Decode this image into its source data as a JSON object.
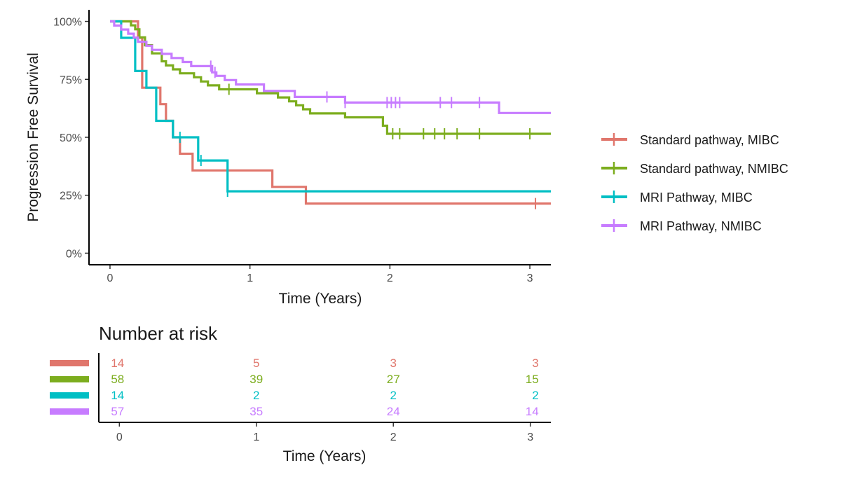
{
  "chart_data": [
    {
      "type": "line",
      "subtype": "kaplan-meier",
      "xlabel": "Time (Years)",
      "ylabel": "Progression Free Survival",
      "xlim": [
        -0.15,
        3.15
      ],
      "ylim": [
        -0.05,
        1.05
      ],
      "x_ticks": [
        0,
        1,
        2,
        3
      ],
      "x_tick_labels": [
        "0",
        "1",
        "2",
        "3"
      ],
      "y_ticks": [
        0,
        0.25,
        0.5,
        0.75,
        1
      ],
      "y_tick_labels": [
        "0%",
        "25%",
        "50%",
        "75%",
        "100%"
      ],
      "grid": false,
      "legend_position": "right",
      "series": [
        {
          "name": "Standard pathway, MIBC",
          "color": "#e0766c",
          "steps": [
            [
              0,
              1.0
            ],
            [
              0.2,
              0.929
            ],
            [
              0.23,
              0.714
            ],
            [
              0.36,
              0.643
            ],
            [
              0.4,
              0.571
            ],
            [
              0.45,
              0.5
            ],
            [
              0.5,
              0.429
            ],
            [
              0.59,
              0.357
            ],
            [
              1.16,
              0.286
            ],
            [
              1.4,
              0.214
            ],
            [
              3.15,
              0.214
            ]
          ],
          "censor_x": [
            3.04
          ]
        },
        {
          "name": "Standard pathway, NMIBC",
          "color": "#7cad1e",
          "steps": [
            [
              0,
              1.0
            ],
            [
              0.15,
              0.983
            ],
            [
              0.18,
              0.966
            ],
            [
              0.21,
              0.931
            ],
            [
              0.25,
              0.897
            ],
            [
              0.3,
              0.862
            ],
            [
              0.37,
              0.828
            ],
            [
              0.4,
              0.81
            ],
            [
              0.45,
              0.793
            ],
            [
              0.5,
              0.776
            ],
            [
              0.6,
              0.759
            ],
            [
              0.65,
              0.741
            ],
            [
              0.7,
              0.724
            ],
            [
              0.78,
              0.707
            ],
            [
              1.05,
              0.69
            ],
            [
              1.2,
              0.672
            ],
            [
              1.28,
              0.655
            ],
            [
              1.33,
              0.638
            ],
            [
              1.38,
              0.621
            ],
            [
              1.43,
              0.603
            ],
            [
              1.68,
              0.586
            ],
            [
              1.95,
              0.55
            ],
            [
              1.98,
              0.515
            ],
            [
              3.15,
              0.515
            ]
          ],
          "censor_x": [
            0.85,
            2.02,
            2.07,
            2.24,
            2.32,
            2.39,
            2.48,
            2.64,
            3.0
          ]
        },
        {
          "name": "MRI Pathway, MIBC",
          "color": "#00bfc4",
          "steps": [
            [
              0,
              1.0
            ],
            [
              0.08,
              0.929
            ],
            [
              0.18,
              0.786
            ],
            [
              0.26,
              0.714
            ],
            [
              0.33,
              0.571
            ],
            [
              0.45,
              0.5
            ],
            [
              0.63,
              0.4
            ],
            [
              0.84,
              0.267
            ],
            [
              3.15,
              0.267
            ]
          ],
          "censor_x": [
            0.5,
            0.65,
            0.84
          ]
        },
        {
          "name": "MRI Pathway, NMIBC",
          "color": "#c77cff",
          "steps": [
            [
              0,
              1.0
            ],
            [
              0.03,
              0.982
            ],
            [
              0.08,
              0.965
            ],
            [
              0.13,
              0.947
            ],
            [
              0.17,
              0.93
            ],
            [
              0.2,
              0.912
            ],
            [
              0.26,
              0.895
            ],
            [
              0.3,
              0.877
            ],
            [
              0.37,
              0.86
            ],
            [
              0.44,
              0.842
            ],
            [
              0.52,
              0.825
            ],
            [
              0.58,
              0.807
            ],
            [
              0.73,
              0.78
            ],
            [
              0.76,
              0.765
            ],
            [
              0.82,
              0.747
            ],
            [
              0.9,
              0.728
            ],
            [
              1.1,
              0.7
            ],
            [
              1.32,
              0.674
            ],
            [
              1.68,
              0.65
            ],
            [
              2.78,
              0.605
            ],
            [
              3.15,
              0.605
            ]
          ],
          "censor_x": [
            0.72,
            0.75,
            1.55,
            1.68,
            1.98,
            2.01,
            2.04,
            2.07,
            2.36,
            2.44,
            2.64
          ]
        }
      ]
    },
    {
      "type": "table",
      "title": "Number at risk",
      "xlabel": "Time (Years)",
      "x_ticks": [
        0,
        1,
        2,
        3
      ],
      "x_tick_labels": [
        "0",
        "1",
        "2",
        "3"
      ],
      "rows": [
        {
          "color": "#e0766c",
          "values": [
            "14",
            "5",
            "3",
            "3"
          ]
        },
        {
          "color": "#7cad1e",
          "values": [
            "58",
            "39",
            "27",
            "15"
          ]
        },
        {
          "color": "#00bfc4",
          "values": [
            "14",
            "2",
            "2",
            "2"
          ]
        },
        {
          "color": "#c77cff",
          "values": [
            "57",
            "35",
            "24",
            "14"
          ]
        }
      ]
    }
  ]
}
